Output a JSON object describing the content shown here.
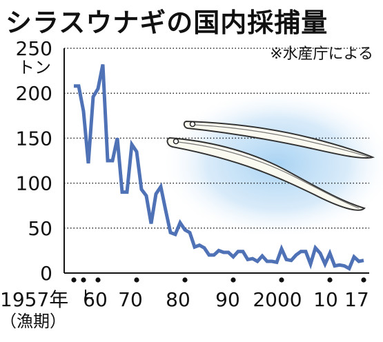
{
  "title": "シラスウナギの国内採捕量",
  "source_note": "※水産庁による",
  "chart_data": {
    "type": "line",
    "title": "シラスウナギの国内採捕量",
    "ylabel": "トン",
    "xlabel": "",
    "ylim": [
      0,
      250
    ],
    "xlim": [
      1957,
      2017
    ],
    "yticks": [
      0,
      50,
      100,
      150,
      200,
      250
    ],
    "xtick_labels": [
      {
        "x": 1957,
        "text": "1957年"
      },
      {
        "x": 1960,
        "text": "60"
      },
      {
        "x": 1970,
        "text": "70"
      },
      {
        "x": 1980,
        "text": "80"
      },
      {
        "x": 1990,
        "text": "90"
      },
      {
        "x": 2000,
        "text": "2000"
      },
      {
        "x": 2010,
        "text": "10"
      },
      {
        "x": 2017,
        "text": "17"
      }
    ],
    "x_axis_note": "（漁期）",
    "grid": true,
    "line_color": "#4f72b6",
    "series": [
      {
        "x": [
          1957,
          1958,
          1959,
          1960,
          1961,
          1962,
          1963,
          1964,
          1965,
          1966,
          1967,
          1968,
          1969,
          1970,
          1971,
          1972,
          1973,
          1974,
          1975,
          1976,
          1977,
          1978,
          1979,
          1980,
          1981,
          1982,
          1983,
          1984,
          1985,
          1986,
          1987,
          1988,
          1989,
          1990,
          1991,
          1992,
          1993,
          1994,
          1995,
          1996,
          1997,
          1998,
          1999,
          2000,
          2001,
          2002,
          2003,
          2004,
          2005,
          2006,
          2007,
          2008,
          2009,
          2010,
          2011,
          2012,
          2013,
          2014,
          2015,
          2016,
          2017
        ],
        "values": [
          208,
          208,
          180,
          122,
          196,
          205,
          232,
          125,
          125,
          150,
          90,
          90,
          143,
          135,
          93,
          86,
          55,
          88,
          96,
          70,
          45,
          43,
          56,
          48,
          45,
          29,
          31,
          28,
          20,
          20,
          25,
          23,
          23,
          18,
          24,
          24,
          15,
          16,
          13,
          19,
          13,
          13,
          12,
          27,
          15,
          14,
          20,
          24,
          24,
          10,
          28,
          22,
          10,
          22,
          8,
          9,
          8,
          5,
          18,
          13,
          14
        ]
      }
    ]
  }
}
